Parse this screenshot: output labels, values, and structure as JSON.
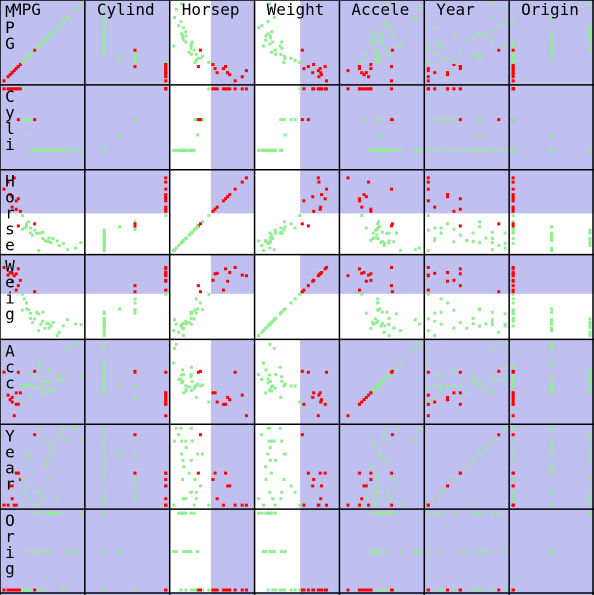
{
  "chart_data": {
    "type": "scatter_matrix",
    "column_labels": [
      "MPG",
      "Cylind",
      "Horsep",
      "Weight",
      "Accele",
      "Year",
      "Origin"
    ],
    "row_labels": [
      "MPG",
      "Cyli",
      "Horse",
      "Weig",
      "Acc",
      "Year",
      "Orig"
    ],
    "variables": [
      {
        "lim": [
          9,
          46.6
        ],
        "values": [
          18,
          15,
          14,
          24,
          26,
          13,
          28,
          22,
          12,
          35,
          19,
          27,
          16,
          31,
          25,
          20,
          11,
          29,
          32,
          17,
          23,
          30,
          21,
          33,
          36,
          26,
          38,
          44,
          28,
          24,
          15,
          16,
          20,
          18,
          40,
          22,
          46.6,
          13,
          31,
          9
        ]
      },
      {
        "lim": [
          3,
          8
        ],
        "values": [
          8,
          8,
          8,
          4,
          4,
          8,
          4,
          6,
          8,
          4,
          6,
          4,
          6,
          4,
          4,
          6,
          8,
          4,
          4,
          8,
          4,
          4,
          6,
          4,
          4,
          4,
          4,
          4,
          4,
          6,
          8,
          8,
          5,
          6,
          4,
          4,
          4,
          8,
          4,
          8
        ]
      },
      {
        "lim": [
          46,
          230
        ],
        "values": [
          130,
          165,
          220,
          95,
          46,
          150,
          75,
          100,
          180,
          69,
          100,
          88,
          105,
          67,
          87,
          110,
          210,
          70,
          65,
          140,
          83,
          68,
          115,
          75,
          58,
          88,
          63,
          52,
          90,
          110,
          145,
          170,
          103,
          97,
          48,
          88,
          65,
          175,
          76,
          193
        ]
      },
      {
        "lim": [
          1613,
          5140
        ],
        "values": [
          3504,
          3693,
          4354,
          2372,
          1835,
          4464,
          2264,
          2634,
          4499,
          1613,
          3288,
          2130,
          3897,
          1950,
          2672,
          3102,
          4382,
          1937,
          2045,
          4141,
          2202,
          2155,
          2795,
          2210,
          1755,
          2605,
          2050,
          2130,
          2678,
          3620,
          4440,
          4668,
          2830,
          2774,
          2335,
          2395,
          2110,
          4100,
          2144,
          4732
        ]
      },
      {
        "lim": [
          8,
          24.8
        ],
        "values": [
          12,
          11.5,
          9,
          15,
          20.5,
          12,
          15.5,
          13,
          12.5,
          18,
          15.5,
          14.5,
          18.5,
          19,
          17.5,
          15.5,
          13.5,
          14,
          16.2,
          14,
          15.3,
          16.5,
          15.7,
          14.4,
          16.9,
          19.6,
          17,
          24.6,
          16.5,
          18.7,
          14,
          11.5,
          15.9,
          15.5,
          23.7,
          18,
          17.9,
          13,
          14.7,
          18.5
        ]
      },
      {
        "lim": [
          70,
          82
        ],
        "values": [
          70,
          70,
          70,
          70,
          70,
          71,
          71,
          71,
          73,
          71,
          72,
          72,
          75,
          74,
          72,
          73,
          70,
          76,
          78,
          74,
          75,
          77,
          78,
          80,
          81,
          82,
          82,
          82,
          80,
          81,
          75,
          75,
          78,
          74,
          80,
          77,
          80,
          73,
          79,
          70
        ]
      },
      {
        "lim": [
          1,
          3
        ],
        "values": [
          1,
          1,
          1,
          3,
          2,
          1,
          1,
          1,
          1,
          3,
          1,
          3,
          1,
          3,
          2,
          1,
          1,
          2,
          3,
          1,
          2,
          3,
          1,
          3,
          3,
          1,
          1,
          2,
          1,
          1,
          1,
          1,
          2,
          1,
          2,
          1,
          3,
          1,
          2,
          1
        ]
      }
    ],
    "brush": [
      {
        "variable": 2,
        "range": [
          46,
          135
        ]
      },
      {
        "variable": 3,
        "range": [
          1613,
          3520
        ]
      }
    ],
    "colors": {
      "background": "#c0c0f0",
      "brush": "#ffffff",
      "selected": "#90ee90",
      "unselected": "#ff0000",
      "grid": "#000000"
    }
  }
}
